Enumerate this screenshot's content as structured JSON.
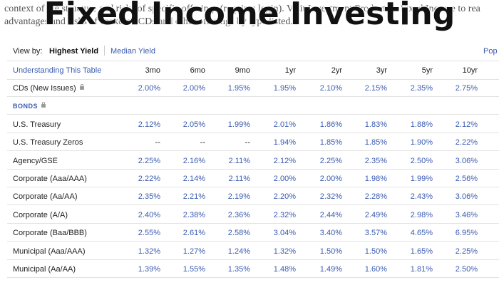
{
  "background_text": [
    "context of the structure and risks of specific offerings (requires login). Visit Investment Products > Fixed Income to rea",
    "advantages and risks of brokered CDs and other offerings by type listed."
  ],
  "title": "Fixed Income Investing",
  "view_by": {
    "label": "View by:",
    "options": [
      "Highest Yield",
      "Median Yield"
    ],
    "extra": "Pop"
  },
  "table": {
    "header": [
      "Understanding This Table",
      "3mo",
      "6mo",
      "9mo",
      "1yr",
      "2yr",
      "3yr",
      "5yr",
      "10yr"
    ],
    "rows": [
      {
        "label": "CDs (New Issues)",
        "lock": true,
        "cells": [
          "2.00%",
          "2.00%",
          "1.95%",
          "1.95%",
          "2.10%",
          "2.15%",
          "2.35%",
          "2.75%"
        ]
      },
      {
        "label": "BONDS",
        "lock": true,
        "section": true
      },
      {
        "label": "U.S. Treasury",
        "cells": [
          "2.12%",
          "2.05%",
          "1.99%",
          "2.01%",
          "1.86%",
          "1.83%",
          "1.88%",
          "2.12%"
        ]
      },
      {
        "label": "U.S. Treasury Zeros",
        "cells": [
          "--",
          "--",
          "--",
          "1.94%",
          "1.85%",
          "1.85%",
          "1.90%",
          "2.22%"
        ]
      },
      {
        "label": "Agency/GSE",
        "cells": [
          "2.25%",
          "2.16%",
          "2.11%",
          "2.12%",
          "2.25%",
          "2.35%",
          "2.50%",
          "3.06%"
        ]
      },
      {
        "label": "Corporate (Aaa/AAA)",
        "cells": [
          "2.22%",
          "2.14%",
          "2.11%",
          "2.00%",
          "2.00%",
          "1.98%",
          "1.99%",
          "2.56%"
        ]
      },
      {
        "label": "Corporate (Aa/AA)",
        "cells": [
          "2.35%",
          "2.21%",
          "2.19%",
          "2.20%",
          "2.32%",
          "2.28%",
          "2.43%",
          "3.06%"
        ]
      },
      {
        "label": "Corporate (A/A)",
        "cells": [
          "2.40%",
          "2.38%",
          "2.36%",
          "2.32%",
          "2.44%",
          "2.49%",
          "2.98%",
          "3.46%"
        ]
      },
      {
        "label": "Corporate (Baa/BBB)",
        "cells": [
          "2.55%",
          "2.61%",
          "2.58%",
          "3.04%",
          "3.40%",
          "3.57%",
          "4.65%",
          "6.95%"
        ]
      },
      {
        "label": "Municipal (Aaa/AAA)",
        "cells": [
          "1.32%",
          "1.27%",
          "1.24%",
          "1.32%",
          "1.50%",
          "1.50%",
          "1.65%",
          "2.25%"
        ]
      },
      {
        "label": "Municipal (Aa/AA)",
        "cells": [
          "1.39%",
          "1.55%",
          "1.35%",
          "1.48%",
          "1.49%",
          "1.60%",
          "1.81%",
          "2.50%"
        ]
      }
    ]
  }
}
